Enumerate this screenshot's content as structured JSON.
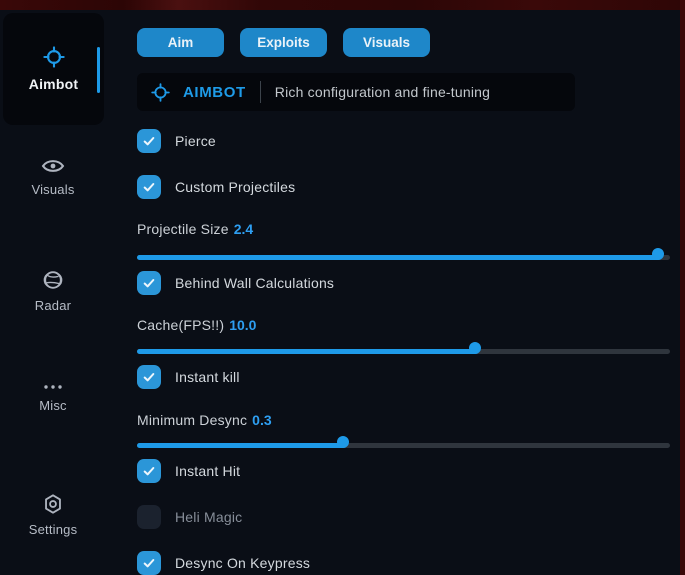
{
  "window": {
    "kind": "cheat-menu"
  },
  "colors": {
    "background": "#0a0e16",
    "panel": "#05070c",
    "accent_blue": "#1e9ae8",
    "tab_blue": "#1e87c9",
    "checkbox_blue": "#2b96d8",
    "value_blue": "#2e9ff2",
    "game_red": "#330707"
  },
  "sidebar": {
    "items": [
      {
        "label": "Aimbot",
        "icon": "crosshair-icon",
        "active": true
      },
      {
        "label": "Visuals",
        "icon": "eye-icon",
        "active": false
      },
      {
        "label": "Radar",
        "icon": "globe-icon",
        "active": false
      },
      {
        "label": "Misc",
        "icon": "ellipsis-icon",
        "active": false
      },
      {
        "label": "Settings",
        "icon": "gear-icon",
        "active": false
      }
    ]
  },
  "tabs": [
    {
      "label": "Aim",
      "active": true
    },
    {
      "label": "Exploits",
      "active": false
    },
    {
      "label": "Visuals",
      "active": false
    }
  ],
  "header": {
    "icon": "crosshair-icon",
    "title": "AIMBOT",
    "subtitle": "Rich configuration and fine-tuning"
  },
  "controls": [
    {
      "type": "checkbox",
      "label": "Pierce",
      "checked": true
    },
    {
      "type": "checkbox",
      "label": "Custom Projectiles",
      "checked": true
    },
    {
      "type": "slider",
      "label": "Projectile Size",
      "value": "2.4",
      "percent": 98.3
    },
    {
      "type": "checkbox",
      "label": "Behind Wall Calculations",
      "checked": true
    },
    {
      "type": "slider",
      "label": "Cache(FPS!!)",
      "value": "10.0",
      "percent": 64.0
    },
    {
      "type": "checkbox",
      "label": "Instant kill",
      "checked": true
    },
    {
      "type": "slider",
      "label": "Minimum Desync",
      "value": "0.3",
      "percent": 39.2
    },
    {
      "type": "checkbox",
      "label": "Instant Hit",
      "checked": true
    },
    {
      "type": "checkbox",
      "label": "Heli Magic",
      "checked": false
    },
    {
      "type": "checkbox",
      "label": "Desync On Keypress",
      "checked": true
    }
  ]
}
